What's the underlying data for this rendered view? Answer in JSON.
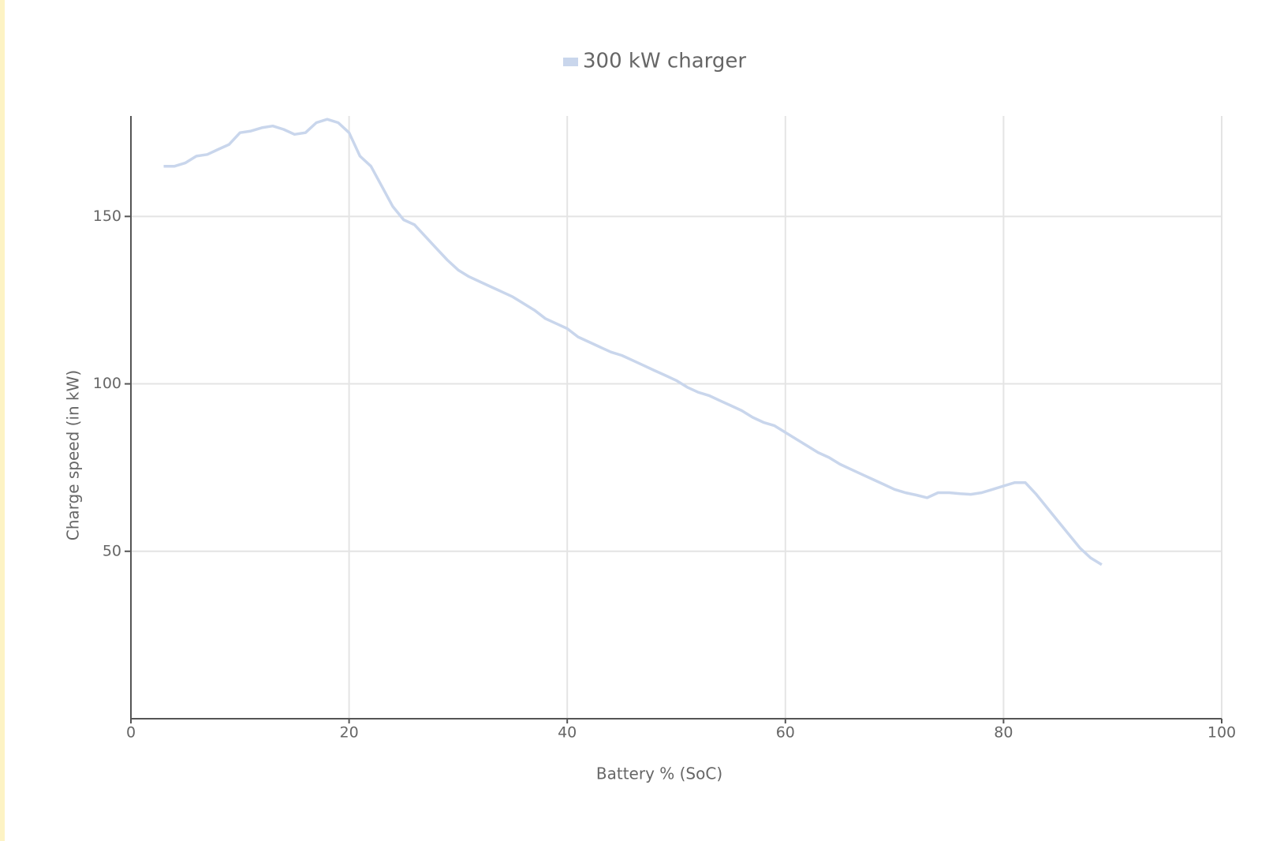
{
  "chart_data": {
    "type": "line",
    "x_label": "Battery % (SoC)",
    "y_label": "Charge speed (in kW)",
    "x": [
      3,
      4,
      5,
      6,
      7,
      8,
      9,
      10,
      11,
      12,
      13,
      14,
      15,
      16,
      17,
      18,
      19,
      20,
      21,
      22,
      23,
      24,
      25,
      26,
      27,
      28,
      29,
      30,
      31,
      32,
      33,
      34,
      35,
      36,
      37,
      38,
      39,
      40,
      41,
      42,
      43,
      44,
      45,
      46,
      47,
      48,
      49,
      50,
      51,
      52,
      53,
      54,
      55,
      56,
      57,
      58,
      59,
      60,
      61,
      62,
      63,
      64,
      65,
      66,
      67,
      68,
      69,
      70,
      71,
      72,
      73,
      74,
      75,
      76,
      77,
      78,
      79,
      80,
      81,
      82,
      83,
      84,
      85,
      86,
      87,
      88,
      89
    ],
    "series": [
      {
        "name": "300 kW charger",
        "color": "#c9d6ec",
        "values": [
          165,
          165,
          166,
          168,
          168.5,
          170,
          171.5,
          175,
          175.5,
          176.5,
          177,
          176,
          174.5,
          175,
          178,
          179,
          178,
          175,
          168,
          165,
          159,
          153,
          149,
          147.5,
          144,
          140.5,
          137,
          134,
          132,
          130.5,
          129,
          127.5,
          126,
          124,
          122,
          119.5,
          118,
          116.5,
          114,
          112.5,
          111,
          109.5,
          108.5,
          107,
          105.5,
          104,
          102.5,
          101,
          99,
          97.5,
          96.5,
          95,
          93.5,
          92,
          90,
          88.5,
          87.5,
          85.5,
          83.5,
          81.5,
          79.5,
          78,
          76,
          74.5,
          73,
          71.5,
          70,
          68.5,
          67.5,
          66.8,
          66,
          67.5,
          67.5,
          67.2,
          67,
          67.5,
          68.5,
          69.5,
          70.5,
          70.5,
          67,
          63,
          59,
          55,
          51,
          48,
          46
        ]
      }
    ],
    "xlim": [
      0,
      100
    ],
    "xticks": [
      0,
      20,
      40,
      60,
      80,
      100
    ],
    "ylim": [
      0,
      180
    ],
    "yticks": [
      50,
      100,
      150
    ],
    "grid": true,
    "legend": "top"
  }
}
